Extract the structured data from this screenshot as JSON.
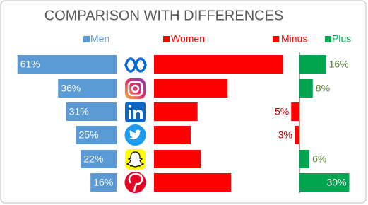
{
  "chart_data": {
    "type": "bar",
    "title": "COMPARISON WITH DIFFERENCES",
    "series": [
      {
        "name": "Men",
        "color": "#5b9bd5",
        "values": [
          61,
          36,
          31,
          25,
          22,
          16
        ],
        "value_labels": [
          "61%",
          "36%",
          "31%",
          "25%",
          "22%",
          "16%"
        ]
      },
      {
        "name": "Women",
        "color": "#ff0000",
        "values": [
          77,
          44,
          26,
          22,
          28,
          46
        ]
      },
      {
        "name": "Minus",
        "color": "#ff0000",
        "values": [
          null,
          null,
          5,
          3,
          null,
          null
        ],
        "value_labels": [
          null,
          null,
          "5%",
          "3%",
          null,
          null
        ]
      },
      {
        "name": "Plus",
        "color": "#00a550",
        "values": [
          16,
          8,
          null,
          null,
          6,
          30
        ],
        "value_labels": [
          "16%",
          "8%",
          null,
          null,
          "6%",
          "30%"
        ]
      }
    ]
  }
}
